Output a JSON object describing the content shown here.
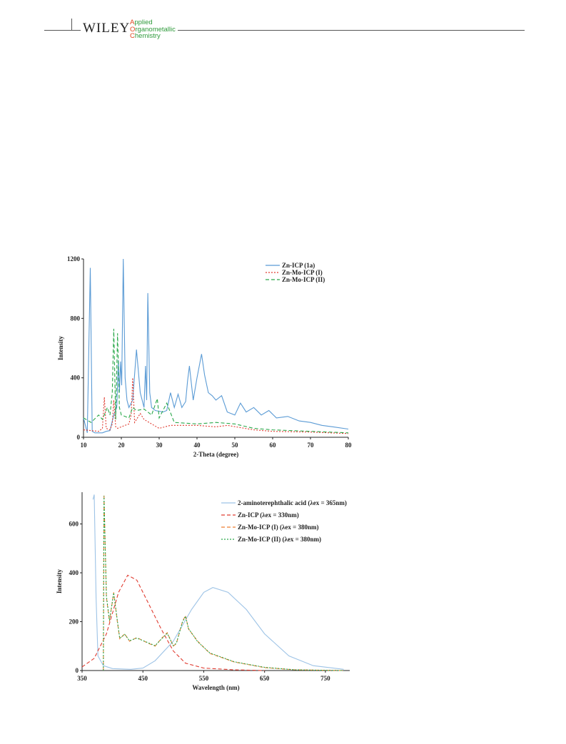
{
  "header": {
    "publisher": "WILEY",
    "journal": [
      "Applied",
      "Organometallic",
      "Chemistry"
    ]
  },
  "chart_data": [
    {
      "type": "line",
      "x_label": "2-Theta (degree)",
      "y_label": "Intensity",
      "xlim": [
        10,
        80
      ],
      "ylim": [
        0,
        1200
      ],
      "xticks": [
        10,
        20,
        30,
        40,
        50,
        60,
        70,
        80
      ],
      "yticks": [
        0,
        400,
        800,
        1200
      ],
      "legend": "upper right",
      "series": [
        {
          "name": "Zn-ICP (1a)",
          "color": "#5b9bd5",
          "linestyle": "solid",
          "x": [
            10,
            11,
            11.8,
            12.3,
            13,
            15,
            16,
            17,
            18,
            18.8,
            19.2,
            19.5,
            19.8,
            20.1,
            20.5,
            21,
            21.5,
            22,
            23,
            24,
            25,
            26,
            26.4,
            26.7,
            27,
            27.5,
            28,
            29,
            31,
            32,
            33,
            34,
            35,
            36,
            37,
            37.5,
            38,
            39,
            40,
            41.2,
            42,
            43,
            44,
            45,
            46.5,
            48,
            50,
            51.5,
            53,
            55,
            57,
            59,
            61,
            64,
            67,
            70,
            73,
            76,
            80
          ],
          "values": [
            130,
            30,
            1140,
            40,
            30,
            30,
            40,
            45,
            150,
            200,
            520,
            300,
            510,
            350,
            1200,
            400,
            250,
            200,
            250,
            590,
            300,
            200,
            480,
            250,
            970,
            300,
            200,
            180,
            170,
            180,
            300,
            200,
            290,
            200,
            240,
            380,
            480,
            250,
            400,
            560,
            420,
            300,
            280,
            250,
            280,
            170,
            150,
            230,
            170,
            200,
            150,
            180,
            130,
            140,
            110,
            100,
            80,
            70,
            55
          ]
        },
        {
          "name": "Zn-Mo-ICP (I)",
          "color": "#e03c31",
          "linestyle": "dotted",
          "x": [
            10,
            12,
            14,
            15,
            15.5,
            16,
            17,
            17.6,
            18,
            18.5,
            19,
            21,
            22,
            22.6,
            23,
            23.5,
            25,
            26,
            28,
            30,
            33,
            40,
            45,
            48,
            55,
            60,
            70,
            80
          ],
          "values": [
            50,
            45,
            40,
            60,
            270,
            60,
            50,
            90,
            250,
            70,
            60,
            80,
            90,
            150,
            400,
            100,
            160,
            120,
            90,
            60,
            80,
            80,
            70,
            80,
            50,
            40,
            35,
            25
          ]
        },
        {
          "name": "Zn-Mo-ICP (II)",
          "color": "#2aa84a",
          "linestyle": "dashed",
          "x": [
            10,
            12,
            14,
            15,
            16.3,
            17,
            17.6,
            18,
            18.5,
            19,
            19.5,
            20,
            22,
            23,
            24,
            26,
            28,
            29.5,
            30,
            32,
            34,
            40,
            45,
            50,
            55,
            60,
            70,
            80
          ],
          "values": [
            130,
            100,
            150,
            120,
            200,
            150,
            300,
            730,
            120,
            700,
            200,
            150,
            130,
            200,
            180,
            190,
            150,
            260,
            130,
            230,
            100,
            90,
            100,
            90,
            60,
            50,
            40,
            30
          ]
        }
      ]
    },
    {
      "type": "line",
      "x_label": "Wavelength (nm)",
      "y_label": "Intensity",
      "xlim": [
        350,
        790
      ],
      "ylim": [
        0,
        730
      ],
      "xticks": [
        350,
        450,
        550,
        650,
        750
      ],
      "yticks": [
        0,
        200,
        400,
        600
      ],
      "legend": "upper right",
      "series": [
        {
          "name": "2-aminoterephthalic acid  (λex = 365nm)",
          "color": "#9dc3e6",
          "linestyle": "solid",
          "x": [
            368,
            370,
            373,
            376,
            385,
            400,
            430,
            450,
            470,
            500,
            530,
            550,
            565,
            590,
            620,
            650,
            690,
            730,
            780
          ],
          "values": [
            700,
            720,
            300,
            60,
            20,
            8,
            5,
            10,
            40,
            120,
            250,
            320,
            340,
            320,
            250,
            150,
            60,
            20,
            5
          ]
        },
        {
          "name": "Zn-ICP (λex = 330nm)",
          "color": "#e03c31",
          "linestyle": "dashed",
          "x": [
            350,
            370,
            390,
            410,
            425,
            440,
            460,
            480,
            500,
            520,
            550,
            600,
            650
          ],
          "values": [
            15,
            50,
            150,
            320,
            390,
            370,
            270,
            170,
            80,
            30,
            10,
            3,
            0
          ]
        },
        {
          "name": "Zn-Mo-ICP (I) (λex = 380nm)",
          "color": "#ed7d31",
          "linestyle": "dashed",
          "x": [
            385,
            386,
            390,
            395,
            402,
            408,
            412,
            420,
            428,
            440,
            460,
            470,
            480,
            490,
            500,
            505,
            515,
            520,
            525,
            540,
            560,
            600,
            650,
            700,
            780
          ],
          "values": [
            0,
            720,
            300,
            200,
            320,
            200,
            130,
            150,
            120,
            135,
            110,
            100,
            130,
            155,
            100,
            110,
            200,
            225,
            170,
            120,
            70,
            35,
            12,
            3,
            0
          ]
        },
        {
          "name": "Zn-Mo-ICP (II) (λex = 380nm)",
          "color": "#2aa84a",
          "linestyle": "dotted",
          "x": [
            385,
            386,
            390,
            395,
            402,
            408,
            412,
            420,
            428,
            440,
            460,
            470,
            480,
            490,
            500,
            505,
            515,
            520,
            525,
            540,
            560,
            600,
            650,
            700,
            780
          ],
          "values": [
            0,
            715,
            305,
            205,
            318,
            205,
            132,
            148,
            122,
            133,
            112,
            102,
            128,
            152,
            102,
            112,
            198,
            222,
            172,
            118,
            72,
            36,
            13,
            3,
            0
          ]
        }
      ]
    }
  ]
}
